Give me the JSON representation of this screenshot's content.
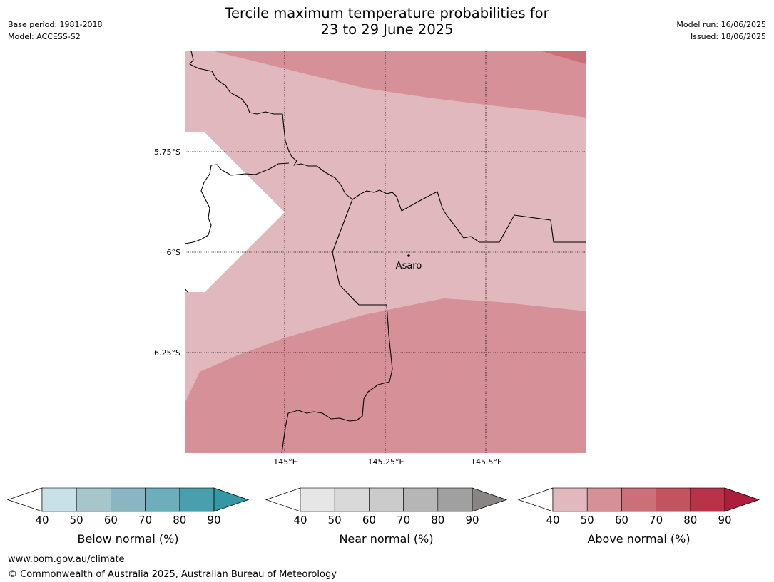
{
  "header": {
    "base_period": "Base period: 1981-2018",
    "model": "Model: ACCESS-S2",
    "model_run": "Model run: 16/06/2025",
    "issued": "Issued: 18/06/2025",
    "title_line1": "Tercile maximum temperature probabilities for",
    "title_line2": "23 to 29 June 2025"
  },
  "map": {
    "lat_labels": [
      "5.75°S",
      "6°S",
      "6.25°S"
    ],
    "lon_labels": [
      "145°E",
      "145.25°E",
      "145.5°E"
    ],
    "place": {
      "name": "Asaro",
      "lon": 145.28,
      "lat": -6.01
    },
    "colors": {
      "above_40_50": "#e0b8bd",
      "above_50_60": "#d69097",
      "above_60_70": "#cc6f78",
      "blank": "#ffffff"
    }
  },
  "colorbars": [
    {
      "label": "Below normal (%)",
      "ticks": [
        "40",
        "50",
        "60",
        "70",
        "80",
        "90"
      ],
      "colors": [
        "#c8e1e6",
        "#a6c6cb",
        "#89b6c2",
        "#6caebb",
        "#48a0ae",
        "#3596a4"
      ]
    },
    {
      "label": "Near normal (%)",
      "ticks": [
        "40",
        "50",
        "60",
        "70",
        "80",
        "90"
      ],
      "colors": [
        "#e6e6e6",
        "#d9d9d9",
        "#cbcbcb",
        "#b6b6b6",
        "#a0a0a0",
        "#8a8484"
      ]
    },
    {
      "label": "Above normal (%)",
      "ticks": [
        "40",
        "50",
        "60",
        "70",
        "80",
        "90"
      ],
      "colors": [
        "#e0b8bd",
        "#d69097",
        "#cc6f78",
        "#c2535f",
        "#b8334a",
        "#ad1e3c"
      ]
    }
  ],
  "footer": {
    "url": "www.bom.gov.au/climate",
    "copyright": "© Commonwealth of Australia 2025, Australian Bureau of Meteorology"
  }
}
